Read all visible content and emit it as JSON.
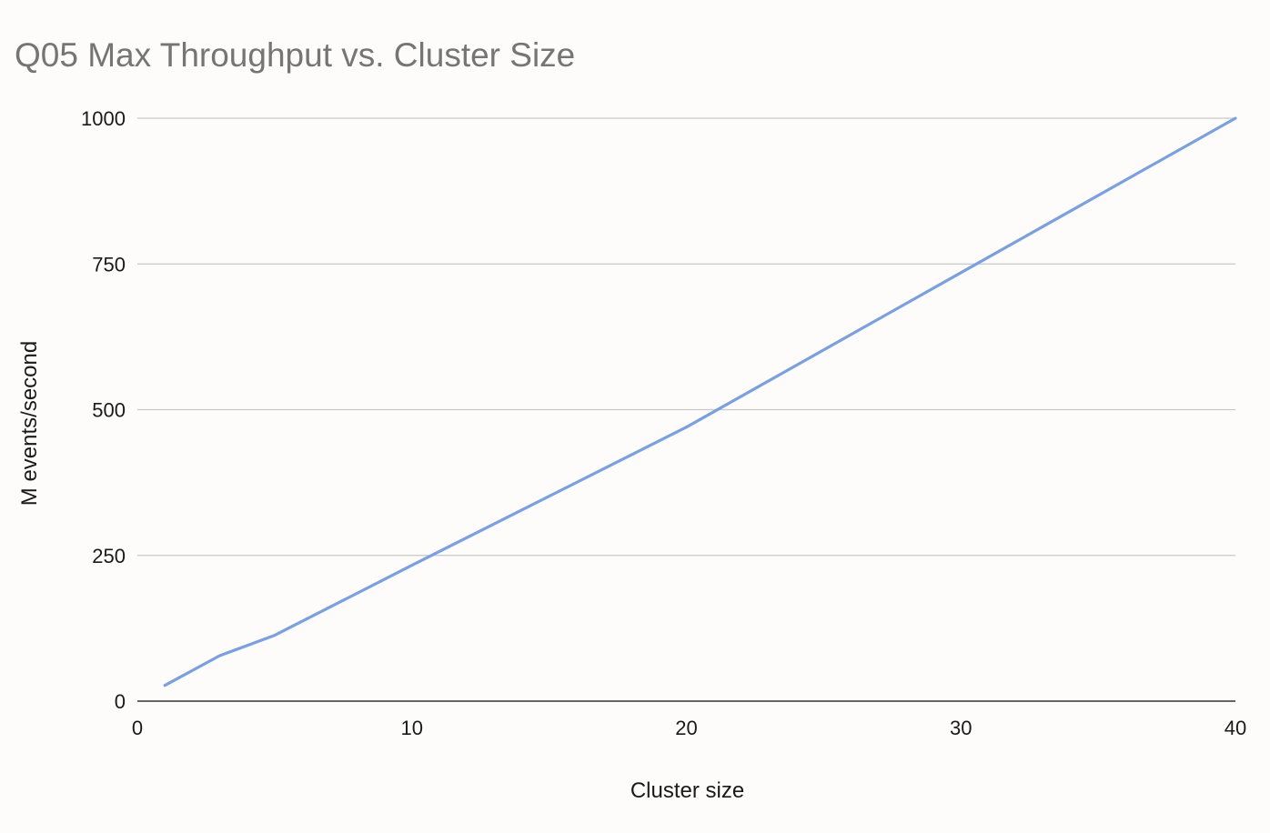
{
  "chart_data": {
    "type": "line",
    "title": "Q05 Max Throughput vs. Cluster Size",
    "xlabel": "Cluster size",
    "ylabel": "M events/second",
    "xlim": [
      0,
      40
    ],
    "ylim": [
      0,
      1000
    ],
    "x_ticks": [
      0,
      10,
      20,
      30,
      40
    ],
    "y_ticks": [
      0,
      250,
      500,
      750,
      1000
    ],
    "grid": true,
    "legend": "none",
    "series": [
      {
        "color": "#7aa0e0",
        "x": [
          1,
          3,
          5,
          10,
          20,
          40
        ],
        "y": [
          27,
          78,
          113,
          233,
          470,
          1000
        ]
      }
    ]
  }
}
